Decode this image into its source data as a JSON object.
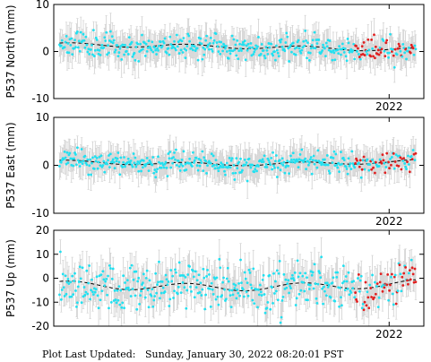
{
  "footer": "Plot Last Updated:   Sunday, January 30, 2022 08:20:01 PST",
  "colors": {
    "points": "#22e0f0",
    "recent_points": "#e02020",
    "error_bars": "#d0d0d0",
    "trend": "#000000",
    "frame": "#000000"
  },
  "chart_data": [
    {
      "type": "scatter",
      "ylabel": "P537 North (mm)",
      "ylim": [
        -10,
        10
      ],
      "yticks": [
        10,
        0,
        -10
      ],
      "xlim": [
        2019.1,
        2022.3
      ],
      "xtick_label": "2022",
      "xtick_value": 2022.0,
      "trend": {
        "start": 1.5,
        "end": 0.3,
        "mid": 0.1
      },
      "amplitude": 1.3,
      "error": 2.8,
      "recent_start": 2021.7,
      "seed": 11
    },
    {
      "type": "scatter",
      "ylabel": "P537 East (mm)",
      "ylim": [
        -10,
        10
      ],
      "yticks": [
        10,
        0,
        -10
      ],
      "xlim": [
        2019.1,
        2022.3
      ],
      "xtick_label": "2022",
      "xtick_value": 2022.0,
      "trend": {
        "start": 0.8,
        "end": 0.9,
        "mid": -0.6
      },
      "amplitude": 1.1,
      "error": 2.6,
      "recent_start": 2021.7,
      "seed": 23
    },
    {
      "type": "scatter",
      "ylabel": "P537 Up (mm)",
      "ylim": [
        -20,
        20
      ],
      "yticks": [
        20,
        10,
        0,
        -10,
        -20
      ],
      "xlim": [
        2019.1,
        2022.3
      ],
      "xtick_label": "2022",
      "xtick_value": 2022.0,
      "trend": {
        "start": -2.5,
        "end": -2.0,
        "mid": -1.5
      },
      "amplitude": 5.0,
      "error": 6.0,
      "recent_start": 2021.7,
      "seed": 37
    }
  ]
}
